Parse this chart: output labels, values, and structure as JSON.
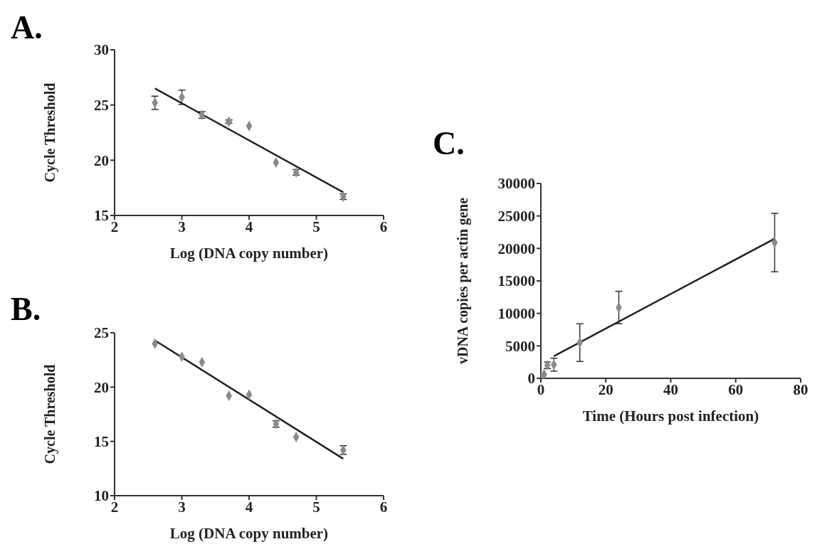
{
  "chart_data": [
    {
      "type": "scatter",
      "title": "A.",
      "xlabel": "Log (DNA copy number)",
      "ylabel": "Cycle Threshold",
      "xlim": [
        2,
        6
      ],
      "xticks": [
        2,
        3,
        4,
        5,
        6
      ],
      "ylim": [
        15,
        30
      ],
      "yticks": [
        15,
        20,
        25,
        30
      ],
      "marker": "diamond",
      "series": [
        {
          "color": "#8a8a8a",
          "x": [
            2.6,
            3.0,
            3.3,
            3.7,
            4.0,
            4.4,
            4.7,
            5.4
          ],
          "values": [
            25.2,
            25.7,
            24.1,
            23.5,
            23.1,
            19.8,
            18.9,
            16.7
          ],
          "errors": [
            0.6,
            0.65,
            0.3,
            0.15,
            null,
            null,
            0.25,
            0.25
          ]
        },
        {
          "type": "line",
          "marker": "none",
          "color": "#222222",
          "x": [
            2.6,
            5.4
          ],
          "values": [
            26.5,
            17.1
          ]
        }
      ]
    },
    {
      "type": "scatter",
      "title": "B.",
      "xlabel": "Log (DNA copy number)",
      "ylabel": "Cycle Threshold",
      "xlim": [
        2,
        6
      ],
      "xticks": [
        2,
        3,
        4,
        5,
        6
      ],
      "ylim": [
        10,
        25
      ],
      "yticks": [
        10,
        15,
        20,
        25
      ],
      "marker": "diamond",
      "series": [
        {
          "color": "#8a8a8a",
          "x": [
            2.6,
            3.0,
            3.3,
            3.7,
            4.0,
            4.4,
            4.7,
            5.4
          ],
          "values": [
            24.0,
            22.8,
            22.3,
            19.2,
            19.3,
            16.6,
            15.4,
            14.2
          ],
          "errors": [
            null,
            null,
            null,
            null,
            null,
            0.3,
            null,
            0.4
          ]
        },
        {
          "type": "line",
          "marker": "none",
          "color": "#222222",
          "x": [
            2.6,
            5.4
          ],
          "values": [
            24.3,
            13.4
          ]
        }
      ]
    },
    {
      "type": "scatter",
      "title": "C.",
      "xlabel": "Time (Hours post infection)",
      "ylabel": "vDNA copies per actin gene",
      "xlim": [
        0,
        80
      ],
      "xticks": [
        0,
        20,
        40,
        60,
        80
      ],
      "ylim": [
        0,
        30000
      ],
      "yticks": [
        0,
        5000,
        10000,
        15000,
        20000,
        25000,
        30000
      ],
      "marker": "diamond",
      "series": [
        {
          "color": "#8a8a8a",
          "x": [
            0,
            1,
            2,
            4,
            12,
            24,
            72
          ],
          "values": [
            200,
            600,
            2000,
            2100,
            5500,
            10900,
            20900
          ],
          "errors": [
            null,
            null,
            500,
            1000,
            2900,
            2500,
            4500
          ]
        },
        {
          "type": "line",
          "marker": "none",
          "color": "#222222",
          "x": [
            4,
            72
          ],
          "values": [
            3400,
            21500
          ]
        }
      ]
    }
  ]
}
